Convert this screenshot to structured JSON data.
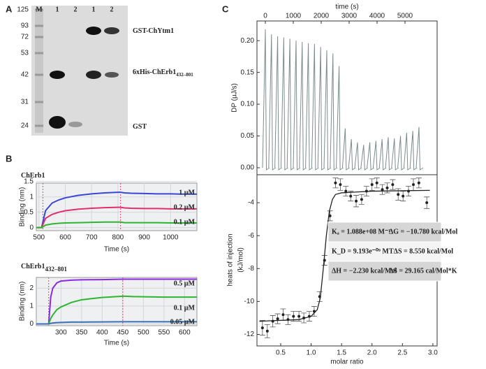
{
  "panels": [
    "A",
    "B",
    "C"
  ],
  "gel": {
    "markers": [
      "125",
      "93",
      "72",
      "53",
      "42",
      "31",
      "24"
    ],
    "lanes": [
      "M",
      "1",
      "2",
      "1",
      "2"
    ],
    "bands": [
      {
        "label": "GST-ChYtm1"
      },
      {
        "label": "6xHis-ChErb1",
        "sub": "432–801"
      },
      {
        "label": "GST"
      }
    ]
  },
  "chart_data": [
    {
      "type": "line",
      "title": "ChErb1",
      "x_label": "Time (s)",
      "y_label": "Binding (nm)",
      "grid": true,
      "xlim": [
        490,
        1100
      ],
      "ylim": [
        -0.1,
        1.45
      ],
      "xticks": [
        500,
        600,
        700,
        800,
        900,
        1000
      ],
      "yticks": [
        0,
        0.5,
        1,
        1.5
      ],
      "vlines": [
        515,
        810
      ],
      "vline_color": "#e8457a",
      "x": [
        490,
        510,
        525,
        550,
        575,
        600,
        650,
        700,
        750,
        800,
        810,
        825,
        850,
        900,
        950,
        1000,
        1050,
        1100
      ],
      "series": [
        {
          "name": "1 µM",
          "color": "#3a46d6",
          "values": [
            0,
            0,
            0.55,
            0.8,
            0.9,
            0.97,
            1.05,
            1.1,
            1.13,
            1.15,
            1.15,
            1.13,
            1.12,
            1.11,
            1.1,
            1.1,
            1.09,
            1.09
          ]
        },
        {
          "name": "0.2 µM",
          "color": "#e0306a",
          "values": [
            0,
            0,
            0.3,
            0.43,
            0.5,
            0.55,
            0.6,
            0.63,
            0.65,
            0.66,
            0.66,
            0.64,
            0.63,
            0.62,
            0.62,
            0.61,
            0.61,
            0.61
          ]
        },
        {
          "name": "0.1 µM",
          "color": "#2fb52f",
          "values": [
            0,
            0,
            0.08,
            0.12,
            0.14,
            0.15,
            0.16,
            0.17,
            0.18,
            0.18,
            0.18,
            0.16,
            0.16,
            0.16,
            0.16,
            0.15,
            0.15,
            0.15
          ]
        }
      ]
    },
    {
      "type": "line",
      "title": "ChErb1",
      "title_sub": "432–801",
      "x_label": "Time (s)",
      "y_label": "Binding (nm)",
      "grid": true,
      "xlim": [
        240,
        630
      ],
      "ylim": [
        -0.1,
        2.6
      ],
      "xticks": [
        300,
        350,
        400,
        450,
        500,
        550,
        600
      ],
      "yticks": [
        0,
        1,
        2
      ],
      "vlines": [
        270,
        450
      ],
      "vline_color": "#e8457a",
      "x": [
        240,
        270,
        275,
        280,
        290,
        300,
        325,
        350,
        400,
        450,
        455,
        475,
        500,
        550,
        600,
        630
      ],
      "series": [
        {
          "name": "0.5 µM",
          "color": "#8a2be2",
          "values": [
            0,
            0,
            1.5,
            2.0,
            2.3,
            2.4,
            2.45,
            2.47,
            2.48,
            2.5,
            2.5,
            2.5,
            2.5,
            2.5,
            2.5,
            2.5
          ]
        },
        {
          "name": "0.1 µM",
          "color": "#2fb52f",
          "values": [
            0,
            0,
            0.3,
            0.5,
            0.8,
            0.95,
            1.2,
            1.35,
            1.48,
            1.55,
            1.55,
            1.53,
            1.52,
            1.5,
            1.5,
            1.5
          ]
        },
        {
          "name": "0.05 µM",
          "color": "#3b6fb6",
          "values": [
            0,
            0,
            0.03,
            0.05,
            0.07,
            0.08,
            0.1,
            0.1,
            0.11,
            0.12,
            0.12,
            0.12,
            0.12,
            0.12,
            0.12,
            0.12
          ]
        }
      ]
    },
    {
      "type": "spike",
      "x_label": "time (s)",
      "y_label": "DP (µJ/s)",
      "color": "#7d8c8c",
      "xlim": [
        -300,
        6150
      ],
      "ylim": [
        -0.011,
        0.231
      ],
      "xticks": [
        0,
        1000,
        2000,
        3000,
        4000,
        5000
      ],
      "yticks": [
        {
          "value": 0,
          "label": "0.00"
        },
        {
          "value": 0.05,
          "label": "0.05"
        },
        {
          "value": 0.1,
          "label": "0.10"
        },
        {
          "value": 0.15,
          "label": "0.15"
        },
        {
          "value": 0.2,
          "label": "0.20"
        }
      ],
      "x": [
        0,
        220,
        440,
        660,
        880,
        1100,
        1320,
        1540,
        1760,
        1980,
        2200,
        2420,
        2640,
        2860,
        3080,
        3300,
        3520,
        3740,
        3960,
        4180,
        4400,
        4620,
        4840,
        5060,
        5280,
        5500
      ],
      "values": [
        0.218,
        0.21,
        0.207,
        0.205,
        0.203,
        0.2,
        0.198,
        0.196,
        0.195,
        0.19,
        0.185,
        0.18,
        0.16,
        0.062,
        0.045,
        0.04,
        0.036,
        0.04,
        0.042,
        0.045,
        0.048,
        0.046,
        0.05,
        0.055,
        0.058,
        0.064
      ]
    },
    {
      "type": "scatter",
      "x_label": "molar ratio",
      "y_label": [
        "heats of injection",
        "(kJ/mol)"
      ],
      "xlim": [
        0.11,
        3.07
      ],
      "ylim": [
        -12.7,
        -2.3
      ],
      "xticks": [
        0.5,
        {
          "value": 1,
          "label": "1.0"
        },
        1.5,
        {
          "value": 2,
          "label": "2.0"
        },
        2.5,
        {
          "value": 3,
          "label": "3.0"
        }
      ],
      "yticks": [
        -12,
        -10,
        -8,
        -6,
        -4
      ],
      "series": [
        {
          "name": "data",
          "style": "errorbar",
          "color": "#222",
          "x": [
            0.2,
            0.28,
            0.37,
            0.45,
            0.54,
            0.62,
            0.71,
            0.8,
            0.88,
            0.97,
            1.05,
            1.14,
            1.22,
            1.31,
            1.4,
            1.48,
            1.57,
            1.65,
            1.74,
            1.83,
            1.91,
            2.0,
            2.08,
            2.17,
            2.25,
            2.34,
            2.43,
            2.51,
            2.6,
            2.68,
            2.77,
            2.9
          ],
          "values": [
            -11.6,
            -11.8,
            -11.2,
            -11.05,
            -10.8,
            -11.1,
            -10.9,
            -10.9,
            -11.0,
            -10.9,
            -10.6,
            -9.7,
            -7.5,
            -4.8,
            -2.8,
            -2.9,
            -3.3,
            -3.6,
            -3.9,
            -3.8,
            -3.3,
            -2.9,
            -2.8,
            -3.2,
            -3.1,
            -2.9,
            -3.5,
            -3.6,
            -3.3,
            -2.9,
            -2.8,
            -4.0
          ],
          "errors": [
            0.45,
            0.4,
            0.35,
            0.3,
            0.35,
            0.3,
            0.3,
            0.3,
            0.3,
            0.3,
            0.3,
            0.3,
            0.3,
            0.3,
            0.3,
            0.35,
            0.3,
            0.3,
            0.35,
            0.3,
            0.3,
            0.35,
            0.3,
            0.3,
            0.3,
            0.3,
            0.35,
            0.3,
            0.3,
            0.35,
            0.3,
            0.35
          ]
        },
        {
          "name": "fit",
          "style": "line",
          "color": "#222",
          "x": [
            0.15,
            0.8,
            1.0,
            1.1,
            1.15,
            1.2,
            1.25,
            1.3,
            1.35,
            1.4,
            1.5,
            2.0,
            2.95
          ],
          "values": [
            -11.2,
            -11.1,
            -10.9,
            -10.5,
            -9.8,
            -8.0,
            -6.0,
            -4.5,
            -3.8,
            -3.5,
            -3.4,
            -3.3,
            -3.25
          ]
        }
      ],
      "stats": [
        [
          "Kₐ = 1.088e+08 M⁻¹",
          "ΔG = −10.780 kcal/Mol"
        ],
        [
          "K_D = 9.193e⁻⁰⁹ M",
          "TΔS = 8.550 kcal/Mol"
        ],
        [
          "ΔH = −2.230 kcal/Mol",
          "ΔS = 29.165 cal/Mol*K"
        ]
      ]
    }
  ]
}
